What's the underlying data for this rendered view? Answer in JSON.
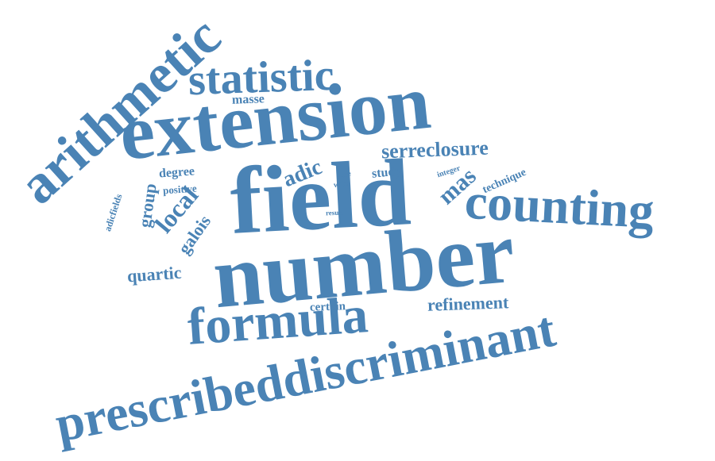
{
  "word_color": "#4a83b5",
  "words": {
    "field": "field",
    "number": "number",
    "extension": "extension",
    "prescribeddiscriminant": "prescribeddiscriminant",
    "arithmetic": "arithmetic",
    "formula": "formula",
    "counting": "counting",
    "statistic": "statistic",
    "serreclosure": "serreclosure",
    "local": "local",
    "refinement": "refinement",
    "quartic": "quartic",
    "mas": "mas",
    "adic": "adic",
    "galois": "galois",
    "group": "group",
    "masse": "masse",
    "degree": "degree",
    "study": "study",
    "technique": "technique",
    "certain": "certain",
    "positive": "positive",
    "adicfields": "adicfields",
    "integer": "integer",
    "wild": "wild",
    "pure": "pure",
    "result": "result"
  }
}
